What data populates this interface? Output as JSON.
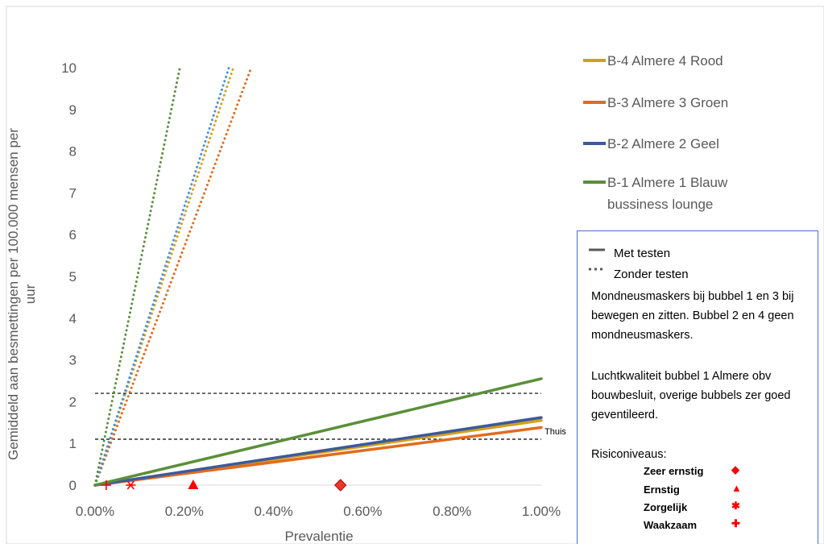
{
  "chart_data": {
    "type": "line",
    "title": "",
    "xlabel": "Prevalentie",
    "ylabel": "Gemiddeld aan besmettingen per 100.000 mensen per uur",
    "xlim": [
      0,
      1.0
    ],
    "ylim": [
      0,
      10
    ],
    "x_ticks": [
      "0.00%",
      "0.20%",
      "0.40%",
      "0.60%",
      "0.80%",
      "1.00%"
    ],
    "y_ticks": [
      "0",
      "1",
      "2",
      "3",
      "4",
      "5",
      "6",
      "7",
      "8",
      "9",
      "10"
    ],
    "x_unit": "percent",
    "grid": "horizontal",
    "legend_position": "right",
    "series": [
      {
        "name": "B-4 Almere 4 Rood",
        "color": "#d4a017",
        "style": "solid",
        "x": [
          0,
          1.0
        ],
        "y": [
          0,
          1.55
        ]
      },
      {
        "name": "B-3 Almere 3 Groen",
        "color": "#e06c1f",
        "style": "solid",
        "x": [
          0,
          1.0
        ],
        "y": [
          0,
          1.38
        ]
      },
      {
        "name": "B-2 Almere 2 Geel",
        "color": "#3c5a9a",
        "style": "solid",
        "x": [
          0,
          1.0
        ],
        "y": [
          0,
          1.62
        ]
      },
      {
        "name": "B-1 Almere 1 Blauw bussiness lounge",
        "color": "#5b8f3a",
        "style": "solid",
        "x": [
          0,
          1.0
        ],
        "y": [
          0,
          2.55
        ]
      },
      {
        "name": "B-4 Almere 4 Rood",
        "color": "#d4a017",
        "style": "dotted",
        "x": [
          0,
          0.31
        ],
        "y": [
          0,
          10
        ]
      },
      {
        "name": "B-3 Almere 3 Groen",
        "color": "#e06c1f",
        "style": "dotted",
        "x": [
          0,
          0.35
        ],
        "y": [
          0,
          10
        ]
      },
      {
        "name": "B-2 Almere 2 Geel",
        "color": "#4a90d9",
        "style": "dotted",
        "x": [
          0,
          0.3
        ],
        "y": [
          0,
          10
        ]
      },
      {
        "name": "B-1 Almere 1 Blauw bussiness lounge",
        "color": "#5b8f3a",
        "style": "dotted",
        "x": [
          0,
          0.19
        ],
        "y": [
          0,
          10
        ]
      }
    ],
    "reference_lines": [
      {
        "y": 2.2,
        "style": "dashed",
        "color": "#000000",
        "label": ""
      },
      {
        "y": 1.1,
        "style": "dashed",
        "color": "#000000",
        "label": "Thuis"
      }
    ],
    "risk_markers": [
      {
        "level": "Waakzaam",
        "x": 0.025,
        "y": 0,
        "symbol": "cross"
      },
      {
        "level": "Zorgelijk",
        "x": 0.08,
        "y": 0,
        "symbol": "asterisk"
      },
      {
        "level": "Ernstig",
        "x": 0.22,
        "y": 0,
        "symbol": "triangle"
      },
      {
        "level": "Zeer ernstig",
        "x": 0.55,
        "y": 0,
        "symbol": "diamond"
      }
    ]
  },
  "legend": {
    "items": [
      {
        "label": "B-4 Almere 4 Rood",
        "color": "#d4a017"
      },
      {
        "label": "B-3 Almere 3 Groen",
        "color": "#e06c1f"
      },
      {
        "label": "B-2 Almere 2 Geel",
        "color": "#3c5a9a"
      },
      {
        "label": "B-1 Almere 1 Blauw",
        "label2": "bussiness lounge",
        "color": "#5b8f3a"
      }
    ]
  },
  "notes": {
    "solid_label": "Met testen",
    "dashed_label": "Zonder testen",
    "masks_text": "Mondneusmaskers bij bubbel 1 en 3 bij bewegen en zitten. Bubbel 2 en 4 geen mondneusmaskers.",
    "air_text": "Luchtkwaliteit bubbel 1 Almere obv bouwbesluit, overige bubbels zer goed geventileerd.",
    "risk_title": "Risiconiveaus:",
    "risk_levels": [
      {
        "label": "Zeer ernstig",
        "symbol": "◆"
      },
      {
        "label": "Ernstig",
        "symbol": "▲"
      },
      {
        "label": "Zorgelijk",
        "symbol": "✱"
      },
      {
        "label": "Waakzaam",
        "symbol": "✚"
      }
    ]
  }
}
